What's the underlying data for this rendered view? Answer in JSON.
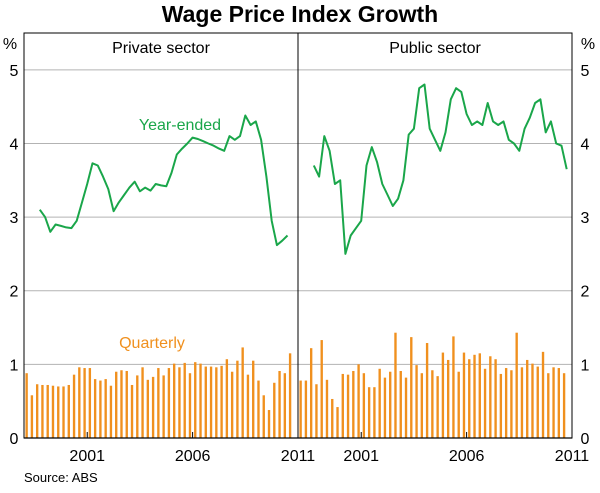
{
  "chart_data": {
    "type": "bar+line",
    "title": "Wage Price Index Growth",
    "source": "Source: ABS",
    "unit_left": "%",
    "unit_right": "%",
    "yticks": [
      "0",
      "1",
      "2",
      "3",
      "4",
      "5"
    ],
    "ylim": [
      0,
      5.5
    ],
    "colors": {
      "year_ended": "#1aa64a",
      "quarterly": "#f0901e"
    },
    "panels": [
      {
        "title": "Private sector",
        "xlim": [
          1998.0,
          2011.0
        ],
        "xticks": [
          {
            "value": 2001,
            "label": "2001"
          },
          {
            "value": 2006,
            "label": "2006"
          },
          {
            "value": 2011,
            "label": "2011"
          }
        ],
        "line_label": "Year-ended",
        "bar_label": "Quarterly",
        "year_ended": {
          "x": [
            1998.75,
            1999.0,
            1999.25,
            1999.5,
            1999.75,
            2000.0,
            2000.25,
            2000.5,
            2000.75,
            2001.0,
            2001.25,
            2001.5,
            2001.75,
            2002.0,
            2002.25,
            2002.5,
            2002.75,
            2003.0,
            2003.25,
            2003.5,
            2003.75,
            2004.0,
            2004.25,
            2004.5,
            2004.75,
            2005.0,
            2005.25,
            2005.5,
            2005.75,
            2006.0,
            2006.25,
            2006.5,
            2006.75,
            2007.0,
            2007.25,
            2007.5,
            2007.75,
            2008.0,
            2008.25,
            2008.5,
            2008.75,
            2009.0,
            2009.25,
            2009.5,
            2009.75,
            2010.0,
            2010.25,
            2010.5
          ],
          "y": [
            3.1,
            3.0,
            2.8,
            2.9,
            2.88,
            2.86,
            2.85,
            2.95,
            3.2,
            3.45,
            3.73,
            3.7,
            3.55,
            3.38,
            3.08,
            3.2,
            3.3,
            3.4,
            3.48,
            3.35,
            3.4,
            3.36,
            3.45,
            3.43,
            3.42,
            3.6,
            3.85,
            3.93,
            4.0,
            4.08,
            4.06,
            4.03,
            4.0,
            3.97,
            3.93,
            3.9,
            4.1,
            4.05,
            4.1,
            4.38,
            4.25,
            4.3,
            4.05,
            3.55,
            2.95,
            2.62,
            2.68,
            2.75
          ]
        },
        "quarterly": {
          "x": [
            1998.25,
            1998.5,
            1998.75,
            1999.0,
            1999.25,
            1999.5,
            1999.75,
            2000.0,
            2000.25,
            2000.5,
            2000.75,
            2001.0,
            2001.25,
            2001.5,
            2001.75,
            2002.0,
            2002.25,
            2002.5,
            2002.75,
            2003.0,
            2003.25,
            2003.5,
            2003.75,
            2004.0,
            2004.25,
            2004.5,
            2004.75,
            2005.0,
            2005.25,
            2005.5,
            2005.75,
            2006.0,
            2006.25,
            2006.5,
            2006.75,
            2007.0,
            2007.25,
            2007.5,
            2007.75,
            2008.0,
            2008.25,
            2008.5,
            2008.75,
            2009.0,
            2009.25,
            2009.5,
            2009.75,
            2010.0,
            2010.25,
            2010.5,
            2010.75
          ],
          "y": [
            0.88,
            0.58,
            0.73,
            0.72,
            0.72,
            0.71,
            0.7,
            0.7,
            0.72,
            0.86,
            0.96,
            0.95,
            0.95,
            0.8,
            0.78,
            0.8,
            0.71,
            0.9,
            0.92,
            0.91,
            0.72,
            0.85,
            0.96,
            0.79,
            0.83,
            0.95,
            0.85,
            0.95,
            1.01,
            0.96,
            1.02,
            0.88,
            1.03,
            1.01,
            0.97,
            0.97,
            0.96,
            0.98,
            1.07,
            0.9,
            1.05,
            1.23,
            0.86,
            1.05,
            0.78,
            0.58,
            0.38,
            0.75,
            0.91,
            0.88,
            1.15
          ]
        }
      },
      {
        "title": "Public sector",
        "xlim": [
          1998.0,
          2011.0
        ],
        "xticks": [
          {
            "value": 2001,
            "label": "2001"
          },
          {
            "value": 2006,
            "label": "2006"
          },
          {
            "value": 2011,
            "label": "2011"
          }
        ],
        "year_ended": {
          "x": [
            1998.75,
            1999.0,
            1999.25,
            1999.5,
            1999.75,
            2000.0,
            2000.25,
            2000.5,
            2000.75,
            2001.0,
            2001.25,
            2001.5,
            2001.75,
            2002.0,
            2002.25,
            2002.5,
            2002.75,
            2003.0,
            2003.25,
            2003.5,
            2003.75,
            2004.0,
            2004.25,
            2004.5,
            2004.75,
            2005.0,
            2005.25,
            2005.5,
            2005.75,
            2006.0,
            2006.25,
            2006.5,
            2006.75,
            2007.0,
            2007.25,
            2007.5,
            2007.75,
            2008.0,
            2008.25,
            2008.5,
            2008.75,
            2009.0,
            2009.25,
            2009.5,
            2009.75,
            2010.0,
            2010.25,
            2010.5,
            2010.75
          ],
          "y": [
            3.7,
            3.55,
            4.1,
            3.9,
            3.45,
            3.5,
            2.5,
            2.75,
            2.85,
            2.95,
            3.7,
            3.95,
            3.75,
            3.45,
            3.3,
            3.15,
            3.25,
            3.5,
            4.12,
            4.2,
            4.75,
            4.8,
            4.2,
            4.05,
            3.9,
            4.15,
            4.6,
            4.75,
            4.7,
            4.4,
            4.25,
            4.3,
            4.25,
            4.55,
            4.3,
            4.25,
            4.3,
            4.05,
            4.0,
            3.9,
            4.2,
            4.35,
            4.55,
            4.6,
            4.15,
            4.3,
            4.0,
            3.97,
            3.65
          ]
        },
        "quarterly": {
          "x": [
            1998.25,
            1998.5,
            1998.75,
            1999.0,
            1999.25,
            1999.5,
            1999.75,
            2000.0,
            2000.25,
            2000.5,
            2000.75,
            2001.0,
            2001.25,
            2001.5,
            2001.75,
            2002.0,
            2002.25,
            2002.5,
            2002.75,
            2003.0,
            2003.25,
            2003.5,
            2003.75,
            2004.0,
            2004.25,
            2004.5,
            2004.75,
            2005.0,
            2005.25,
            2005.5,
            2005.75,
            2006.0,
            2006.25,
            2006.5,
            2006.75,
            2007.0,
            2007.25,
            2007.5,
            2007.75,
            2008.0,
            2008.25,
            2008.5,
            2008.75,
            2009.0,
            2009.25,
            2009.5,
            2009.75,
            2010.0,
            2010.25,
            2010.5,
            2010.75
          ],
          "y": [
            0.78,
            0.78,
            1.22,
            0.73,
            1.33,
            0.79,
            0.53,
            0.42,
            0.87,
            0.86,
            0.91,
            1.0,
            0.88,
            0.69,
            0.69,
            0.94,
            0.82,
            0.9,
            1.43,
            0.91,
            0.82,
            1.37,
            0.99,
            0.88,
            1.29,
            0.92,
            0.84,
            1.16,
            1.06,
            1.38,
            0.9,
            1.16,
            1.07,
            1.13,
            1.15,
            0.94,
            1.11,
            1.07,
            0.87,
            0.95,
            0.92,
            1.43,
            0.96,
            1.06,
            1.01,
            0.97,
            1.17,
            0.88,
            0.96,
            0.95,
            0.88
          ]
        }
      }
    ]
  }
}
